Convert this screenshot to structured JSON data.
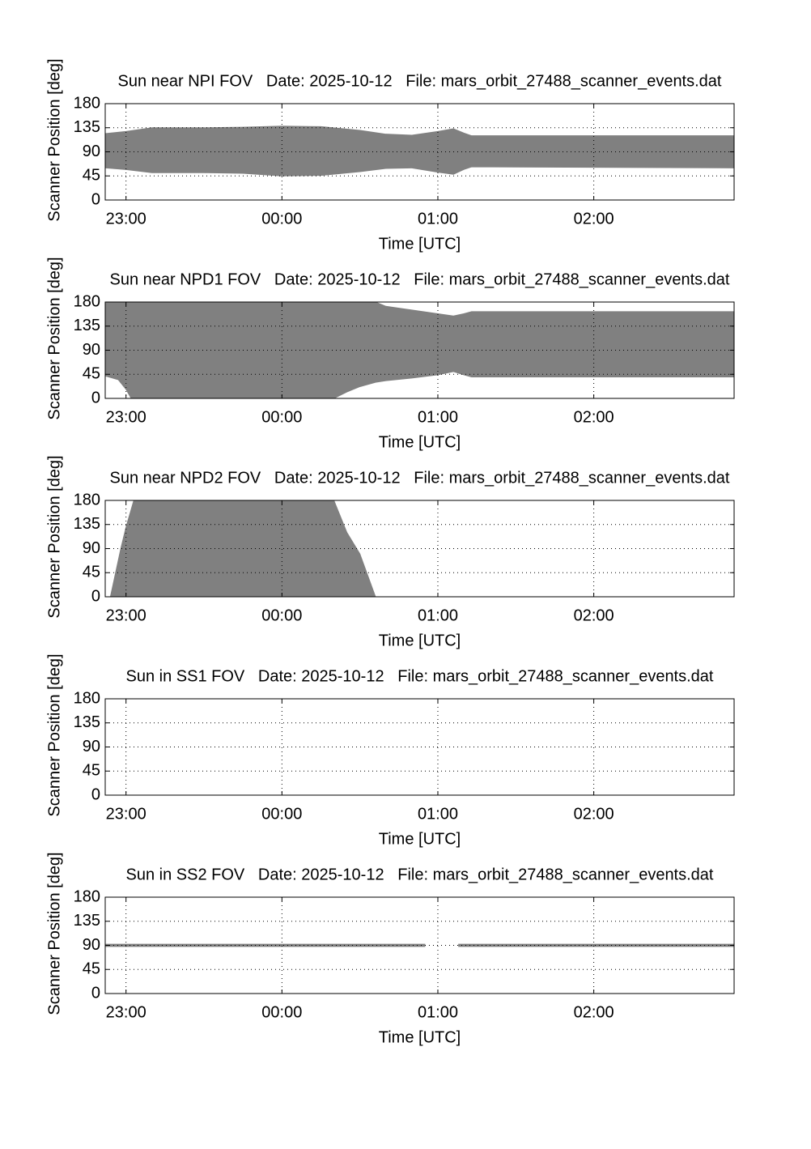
{
  "chart_data": [
    {
      "type": "area",
      "title": "Sun near NPI FOV   Date: 2025-10-12   File: mars_orbit_27488_scanner_events.dat",
      "xlabel": "Time [UTC]",
      "ylabel": "Scanner Position [deg]",
      "xlim": [
        "22:52",
        "02:54"
      ],
      "xticks": [
        "23:00",
        "00:00",
        "01:00",
        "02:00"
      ],
      "ylim": [
        0,
        180
      ],
      "yticks": [
        0,
        45,
        90,
        135,
        180
      ],
      "grid": true,
      "x": [
        "22:52",
        "23:00",
        "23:10",
        "23:30",
        "23:45",
        "00:00",
        "00:15",
        "00:30",
        "00:40",
        "00:50",
        "01:00",
        "01:06",
        "01:10",
        "01:13",
        "02:54"
      ],
      "series": [
        {
          "color": "#808080",
          "high": [
            124,
            128,
            135,
            135,
            136,
            138,
            137,
            130,
            123,
            121,
            128,
            133,
            125,
            120,
            120
          ],
          "low": [
            60,
            57,
            51,
            51,
            50,
            45,
            46,
            53,
            59,
            60,
            52,
            48,
            57,
            62,
            60
          ]
        }
      ]
    },
    {
      "type": "area",
      "title": "Sun near NPD1 FOV   Date: 2025-10-12   File: mars_orbit_27488_scanner_events.dat",
      "xlabel": "Time [UTC]",
      "ylabel": "Scanner Position [deg]",
      "xlim": [
        "22:52",
        "02:54"
      ],
      "xticks": [
        "23:00",
        "00:00",
        "01:00",
        "02:00"
      ],
      "ylim": [
        0,
        180
      ],
      "yticks": [
        0,
        45,
        90,
        135,
        180
      ],
      "grid": true,
      "x": [
        "22:52",
        "22:57",
        "23:00",
        "23:02",
        "00:20",
        "00:25",
        "00:30",
        "00:36",
        "00:40",
        "00:50",
        "01:00",
        "01:06",
        "01:10",
        "01:13",
        "02:54"
      ],
      "series": [
        {
          "color": "#808080",
          "high": [
            180,
            180,
            180,
            180,
            180,
            180,
            180,
            180,
            172,
            165,
            158,
            154,
            158,
            162,
            162
          ],
          "low": [
            42,
            35,
            17,
            0,
            0,
            12,
            22,
            30,
            33,
            38,
            44,
            50,
            44,
            40,
            40
          ]
        }
      ]
    },
    {
      "type": "area",
      "title": "Sun near NPD2 FOV   Date: 2025-10-12   File: mars_orbit_27488_scanner_events.dat",
      "xlabel": "Time [UTC]",
      "ylabel": "Scanner Position [deg]",
      "xlim": [
        "22:52",
        "02:54"
      ],
      "xticks": [
        "23:00",
        "00:00",
        "01:00",
        "02:00"
      ],
      "ylim": [
        0,
        180
      ],
      "yticks": [
        0,
        45,
        90,
        135,
        180
      ],
      "grid": true,
      "x": [
        "22:54",
        "22:56",
        "22:58",
        "23:00",
        "23:03",
        "00:20",
        "00:25",
        "00:30",
        "00:33",
        "00:36"
      ],
      "series": [
        {
          "color": "#808080",
          "high": [
            0,
            45,
            90,
            130,
            180,
            180,
            120,
            80,
            40,
            0
          ],
          "low": [
            0,
            0,
            0,
            0,
            0,
            0,
            0,
            0,
            0,
            0
          ]
        }
      ]
    },
    {
      "type": "area",
      "title": "Sun in SS1 FOV   Date: 2025-10-12   File: mars_orbit_27488_scanner_events.dat",
      "xlabel": "Time [UTC]",
      "ylabel": "Scanner Position [deg]",
      "xlim": [
        "22:52",
        "02:54"
      ],
      "xticks": [
        "23:00",
        "00:00",
        "01:00",
        "02:00"
      ],
      "ylim": [
        0,
        180
      ],
      "yticks": [
        0,
        45,
        90,
        135,
        180
      ],
      "grid": true,
      "x": [],
      "series": []
    },
    {
      "type": "area",
      "title": "Sun in SS2 FOV   Date: 2025-10-12   File: mars_orbit_27488_scanner_events.dat",
      "xlabel": "Time [UTC]",
      "ylabel": "Scanner Position [deg]",
      "xlim": [
        "22:52",
        "02:54"
      ],
      "xticks": [
        "23:00",
        "00:00",
        "01:00",
        "02:00"
      ],
      "ylim": [
        0,
        180
      ],
      "yticks": [
        0,
        45,
        90,
        135,
        180
      ],
      "grid": true,
      "x": [
        "22:52",
        "00:55",
        "01:00",
        "01:08",
        "02:54"
      ],
      "series": [
        {
          "color": "#808080",
          "high": [
            92,
            92,
            null,
            92,
            92
          ],
          "low": [
            88,
            88,
            null,
            88,
            88
          ]
        }
      ]
    }
  ]
}
